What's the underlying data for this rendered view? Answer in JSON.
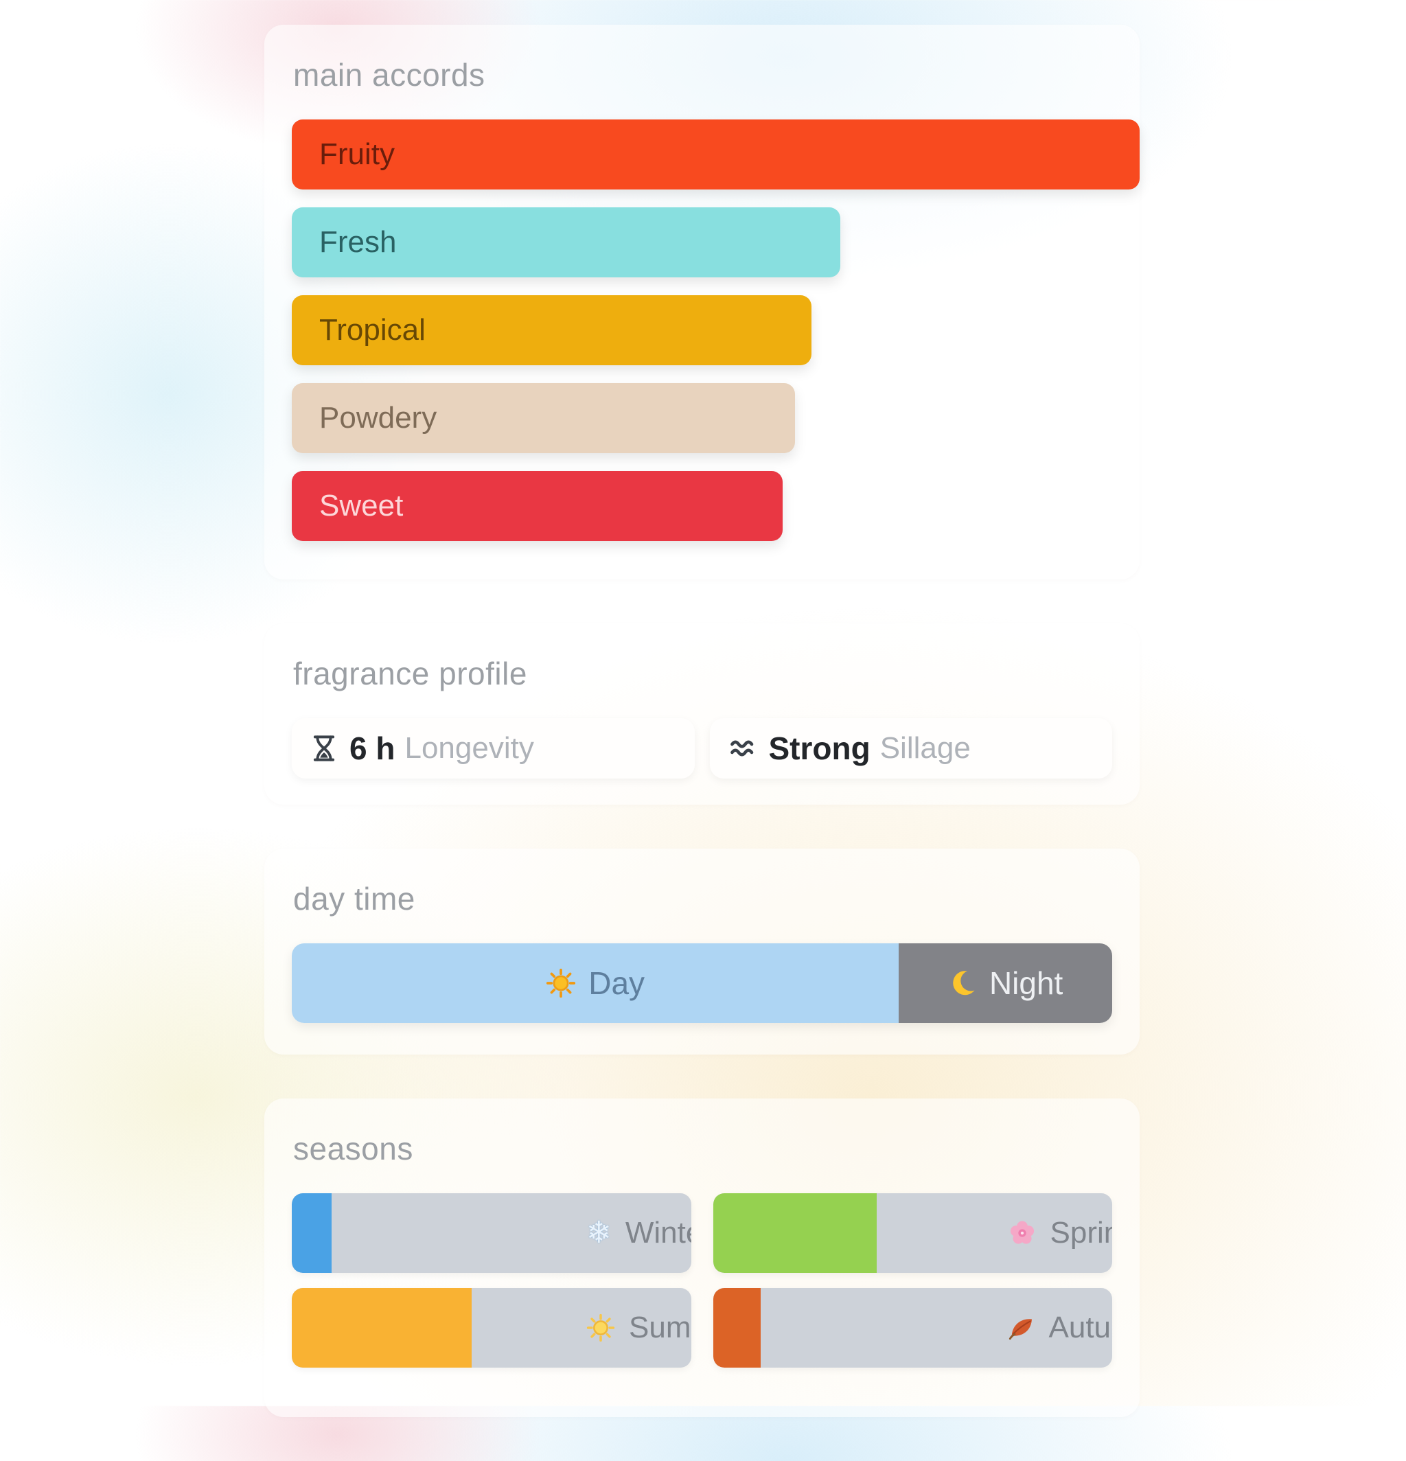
{
  "page": {
    "card_bg": "rgba(255,255,255,0.60)",
    "title_color": "#9b9fa4"
  },
  "sections": {
    "main_accords": {
      "title": "main accords",
      "accords": [
        {
          "label": "Fruity",
          "width_pct": 100,
          "bg": "#f84a1f",
          "text_color": "rgba(20,2,0,0.62)"
        },
        {
          "label": "Fresh",
          "width_pct": 63.5,
          "bg": "#88dfdf",
          "text_color": "rgba(10,55,58,0.75)"
        },
        {
          "label": "Tropical",
          "width_pct": 60,
          "bg": "#eeae0e",
          "text_color": "rgba(20,10,0,0.62)"
        },
        {
          "label": "Powdery",
          "width_pct": 58,
          "bg": "#e8d3be",
          "text_color": "rgba(62,44,24,0.62)"
        },
        {
          "label": "Sweet",
          "width_pct": 56.5,
          "bg": "#e93743",
          "text_color": "rgba(255,238,238,0.88)"
        }
      ]
    },
    "fragrance_profile": {
      "title": "fragrance profile",
      "stats": [
        {
          "icon": "hourglass-icon",
          "value": "6 h",
          "label": "Longevity"
        },
        {
          "icon": "waves-icon",
          "value": "Strong",
          "label": "Sillage"
        }
      ]
    },
    "day_time": {
      "title": "day time",
      "segments": [
        {
          "label": "Day",
          "icon": "sun-icon",
          "width_pct": 74,
          "bg": "#aed5f3",
          "text_color": "#5e7f9e"
        },
        {
          "label": "Night",
          "icon": "moon-icon",
          "width_pct": 26,
          "bg": "#828388",
          "text_color": "#eef0f3"
        }
      ]
    },
    "seasons": {
      "title": "seasons",
      "track_color": "#cdd2d9",
      "label_color": "#7f848b",
      "items": [
        {
          "label": "Winter",
          "icon": "snowflake-icon",
          "fill_pct": 10,
          "fill_color": "#4aa2e5"
        },
        {
          "label": "Spring",
          "icon": "blossom-icon",
          "fill_pct": 41,
          "fill_color": "#95d150"
        },
        {
          "label": "Summer",
          "icon": "summer-sun-icon",
          "fill_pct": 45,
          "fill_color": "#f9b233"
        },
        {
          "label": "Autumn",
          "icon": "leaf-icon",
          "fill_pct": 12,
          "fill_color": "#dc6326"
        }
      ]
    }
  }
}
